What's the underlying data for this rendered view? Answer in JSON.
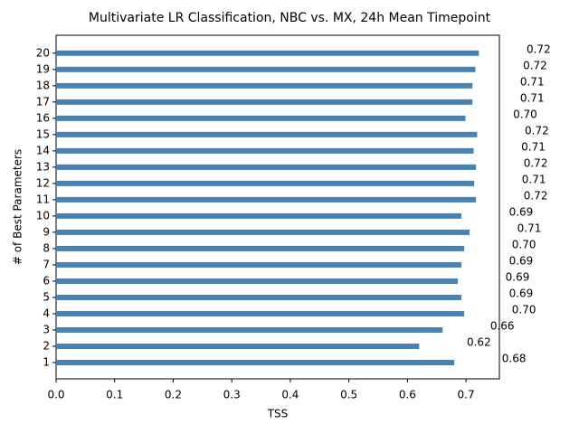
{
  "chart_data": {
    "type": "barh",
    "title": "Multivariate LR Classification, NBC vs. MX, 24h Mean Timepoint",
    "x_label": "TSS",
    "y_label": "# of Best Parameters",
    "categories": [
      "1",
      "2",
      "3",
      "4",
      "5",
      "6",
      "7",
      "8",
      "9",
      "10",
      "11",
      "12",
      "13",
      "14",
      "15",
      "16",
      "17",
      "18",
      "19",
      "20"
    ],
    "values": [
      0.68,
      0.62,
      0.66,
      0.697,
      0.692,
      0.686,
      0.692,
      0.697,
      0.706,
      0.692,
      0.717,
      0.714,
      0.717,
      0.713,
      0.719,
      0.699,
      0.711,
      0.711,
      0.716,
      0.722
    ],
    "value_labels": [
      "0.68",
      "0.62",
      "0.66",
      "0.70",
      "0.69",
      "0.69",
      "0.69",
      "0.70",
      "0.71",
      "0.69",
      "0.72",
      "0.71",
      "0.72",
      "0.71",
      "0.72",
      "0.70",
      "0.71",
      "0.71",
      "0.72",
      "0.72"
    ],
    "color": "#4682b4",
    "xlim": [
      0,
      0.757
    ],
    "xticks": [
      {
        "value": 0,
        "label": "0.0"
      },
      0.1,
      0.2,
      0.3,
      0.4,
      0.5,
      0.6,
      0.7
    ]
  }
}
